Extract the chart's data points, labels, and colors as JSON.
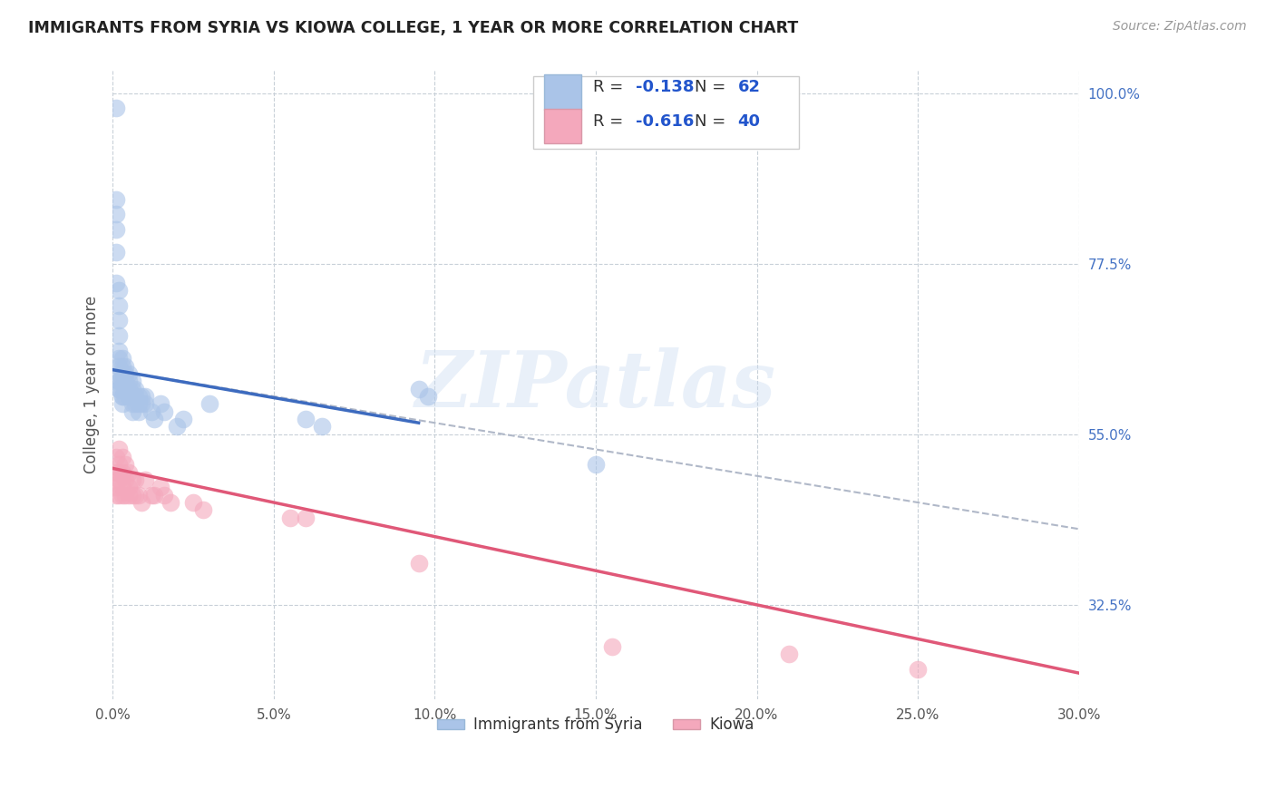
{
  "title": "IMMIGRANTS FROM SYRIA VS KIOWA COLLEGE, 1 YEAR OR MORE CORRELATION CHART",
  "source": "Source: ZipAtlas.com",
  "ylabel": "College, 1 year or more",
  "xlim": [
    0.0,
    0.3
  ],
  "ylim": [
    0.2,
    1.03
  ],
  "xtick_labels": [
    "0.0%",
    "5.0%",
    "10.0%",
    "15.0%",
    "20.0%",
    "25.0%",
    "30.0%"
  ],
  "xtick_values": [
    0.0,
    0.05,
    0.1,
    0.15,
    0.2,
    0.25,
    0.3
  ],
  "right_ytick_labels": [
    "100.0%",
    "77.5%",
    "55.0%",
    "32.5%"
  ],
  "right_ytick_values": [
    1.0,
    0.775,
    0.55,
    0.325
  ],
  "blue_label": "Immigrants from Syria",
  "pink_label": "Kiowa",
  "blue_R": -0.138,
  "blue_N": 62,
  "pink_R": -0.616,
  "pink_N": 40,
  "blue_scatter_color": "#aac4e8",
  "pink_scatter_color": "#f4a8bc",
  "blue_line_color": "#3d6bbf",
  "pink_line_color": "#e05878",
  "dashed_line_color": "#b0b8c8",
  "blue_line_x": [
    0.0,
    0.095
  ],
  "blue_line_y": [
    0.635,
    0.565
  ],
  "pink_line_x": [
    0.0,
    0.3
  ],
  "pink_line_y": [
    0.505,
    0.235
  ],
  "dash_line_x": [
    0.0,
    0.3
  ],
  "dash_line_y": [
    0.635,
    0.425
  ],
  "blue_points_x": [
    0.001,
    0.001,
    0.001,
    0.001,
    0.001,
    0.001,
    0.002,
    0.002,
    0.002,
    0.002,
    0.002,
    0.002,
    0.002,
    0.002,
    0.002,
    0.002,
    0.002,
    0.002,
    0.003,
    0.003,
    0.003,
    0.003,
    0.003,
    0.003,
    0.003,
    0.003,
    0.004,
    0.004,
    0.004,
    0.004,
    0.004,
    0.005,
    0.005,
    0.005,
    0.005,
    0.006,
    0.006,
    0.006,
    0.006,
    0.006,
    0.007,
    0.007,
    0.007,
    0.008,
    0.008,
    0.008,
    0.009,
    0.009,
    0.01,
    0.01,
    0.012,
    0.013,
    0.015,
    0.016,
    0.02,
    0.022,
    0.03,
    0.06,
    0.065,
    0.095,
    0.098,
    0.15
  ],
  "blue_points_y": [
    0.98,
    0.86,
    0.84,
    0.82,
    0.79,
    0.75,
    0.74,
    0.72,
    0.7,
    0.68,
    0.66,
    0.65,
    0.64,
    0.63,
    0.62,
    0.62,
    0.61,
    0.61,
    0.65,
    0.64,
    0.63,
    0.62,
    0.61,
    0.6,
    0.6,
    0.59,
    0.64,
    0.63,
    0.62,
    0.61,
    0.6,
    0.63,
    0.62,
    0.61,
    0.6,
    0.62,
    0.61,
    0.6,
    0.59,
    0.58,
    0.61,
    0.6,
    0.59,
    0.6,
    0.59,
    0.58,
    0.6,
    0.59,
    0.6,
    0.59,
    0.58,
    0.57,
    0.59,
    0.58,
    0.56,
    0.57,
    0.59,
    0.57,
    0.56,
    0.61,
    0.6,
    0.51
  ],
  "pink_points_x": [
    0.001,
    0.001,
    0.001,
    0.001,
    0.001,
    0.002,
    0.002,
    0.002,
    0.002,
    0.002,
    0.003,
    0.003,
    0.003,
    0.003,
    0.004,
    0.004,
    0.004,
    0.005,
    0.005,
    0.005,
    0.006,
    0.006,
    0.007,
    0.007,
    0.008,
    0.009,
    0.01,
    0.012,
    0.013,
    0.015,
    0.016,
    0.018,
    0.025,
    0.028,
    0.055,
    0.06,
    0.095,
    0.155,
    0.21,
    0.25
  ],
  "pink_points_y": [
    0.52,
    0.5,
    0.49,
    0.48,
    0.47,
    0.53,
    0.51,
    0.5,
    0.49,
    0.47,
    0.52,
    0.5,
    0.48,
    0.47,
    0.51,
    0.49,
    0.47,
    0.5,
    0.48,
    0.47,
    0.49,
    0.47,
    0.49,
    0.47,
    0.47,
    0.46,
    0.49,
    0.47,
    0.47,
    0.48,
    0.47,
    0.46,
    0.46,
    0.45,
    0.44,
    0.44,
    0.38,
    0.27,
    0.26,
    0.24
  ],
  "watermark": "ZIPatlas",
  "background_color": "#ffffff",
  "grid_color": "#c8d0d8"
}
